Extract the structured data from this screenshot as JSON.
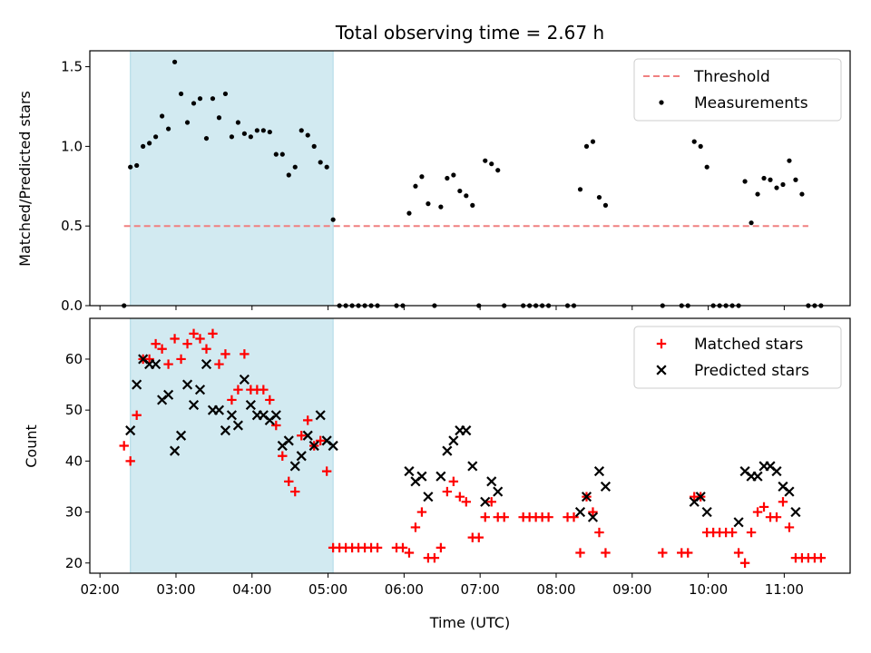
{
  "figure": {
    "title": "Total observing time = 2.67 h",
    "xlabel": "Time (UTC)",
    "x_ticks": [
      "02:00",
      "03:00",
      "04:00",
      "05:00",
      "06:00",
      "07:00",
      "08:00",
      "09:00",
      "10:00",
      "11:00"
    ],
    "shaded_interval": [
      "02:24",
      "05:04"
    ],
    "shade_color": "#add8e6"
  },
  "chart_data": [
    {
      "type": "scatter",
      "panel": "top",
      "ylabel": "Matched/Predicted stars",
      "xlim": [
        "01:52",
        "11:52"
      ],
      "ylim": [
        0,
        1.6
      ],
      "yticks": [
        "0.0",
        "0.5",
        "1.0",
        "1.5"
      ],
      "legend_position": "top-right",
      "threshold": {
        "name": "Threshold",
        "value": 0.5,
        "x_range": [
          "02:19",
          "11:19"
        ],
        "color": "#f08080",
        "style": "dashed"
      },
      "series": [
        {
          "name": "Measurements",
          "color": "#000000",
          "marker": "dot",
          "points": [
            [
              "02:19",
              0.0
            ],
            [
              "02:24",
              0.87
            ],
            [
              "02:29",
              0.88
            ],
            [
              "02:34",
              1.0
            ],
            [
              "02:39",
              1.02
            ],
            [
              "02:44",
              1.06
            ],
            [
              "02:49",
              1.19
            ],
            [
              "02:54",
              1.11
            ],
            [
              "02:59",
              1.53
            ],
            [
              "03:04",
              1.33
            ],
            [
              "03:09",
              1.15
            ],
            [
              "03:14",
              1.27
            ],
            [
              "03:19",
              1.3
            ],
            [
              "03:24",
              1.05
            ],
            [
              "03:29",
              1.3
            ],
            [
              "03:34",
              1.18
            ],
            [
              "03:39",
              1.33
            ],
            [
              "03:44",
              1.06
            ],
            [
              "03:49",
              1.15
            ],
            [
              "03:54",
              1.08
            ],
            [
              "03:59",
              1.06
            ],
            [
              "04:04",
              1.1
            ],
            [
              "04:09",
              1.1
            ],
            [
              "04:14",
              1.09
            ],
            [
              "04:19",
              0.95
            ],
            [
              "04:24",
              0.95
            ],
            [
              "04:29",
              0.82
            ],
            [
              "04:34",
              0.87
            ],
            [
              "04:39",
              1.1
            ],
            [
              "04:44",
              1.07
            ],
            [
              "04:49",
              1.0
            ],
            [
              "04:54",
              0.9
            ],
            [
              "04:59",
              0.87
            ],
            [
              "05:04",
              0.54
            ],
            [
              "05:09",
              0.0
            ],
            [
              "05:14",
              0.0
            ],
            [
              "05:19",
              0.0
            ],
            [
              "05:24",
              0.0
            ],
            [
              "05:29",
              0.0
            ],
            [
              "05:34",
              0.0
            ],
            [
              "05:39",
              0.0
            ],
            [
              "05:54",
              0.0
            ],
            [
              "05:59",
              0.0
            ],
            [
              "06:04",
              0.58
            ],
            [
              "06:09",
              0.75
            ],
            [
              "06:14",
              0.81
            ],
            [
              "06:19",
              0.64
            ],
            [
              "06:24",
              0.0
            ],
            [
              "06:29",
              0.62
            ],
            [
              "06:34",
              0.8
            ],
            [
              "06:39",
              0.82
            ],
            [
              "06:44",
              0.72
            ],
            [
              "06:49",
              0.69
            ],
            [
              "06:54",
              0.63
            ],
            [
              "06:59",
              0.0
            ],
            [
              "07:04",
              0.91
            ],
            [
              "07:09",
              0.89
            ],
            [
              "07:14",
              0.85
            ],
            [
              "07:19",
              0.0
            ],
            [
              "07:34",
              0.0
            ],
            [
              "07:39",
              0.0
            ],
            [
              "07:44",
              0.0
            ],
            [
              "07:49",
              0.0
            ],
            [
              "07:54",
              0.0
            ],
            [
              "08:09",
              0.0
            ],
            [
              "08:14",
              0.0
            ],
            [
              "08:19",
              0.73
            ],
            [
              "08:24",
              1.0
            ],
            [
              "08:29",
              1.03
            ],
            [
              "08:34",
              0.68
            ],
            [
              "08:39",
              0.63
            ],
            [
              "09:24",
              0.0
            ],
            [
              "09:39",
              0.0
            ],
            [
              "09:44",
              0.0
            ],
            [
              "09:49",
              1.03
            ],
            [
              "09:54",
              1.0
            ],
            [
              "09:59",
              0.87
            ],
            [
              "10:04",
              0.0
            ],
            [
              "10:09",
              0.0
            ],
            [
              "10:14",
              0.0
            ],
            [
              "10:19",
              0.0
            ],
            [
              "10:24",
              0.0
            ],
            [
              "10:29",
              0.78
            ],
            [
              "10:34",
              0.52
            ],
            [
              "10:39",
              0.7
            ],
            [
              "10:44",
              0.8
            ],
            [
              "10:49",
              0.79
            ],
            [
              "10:54",
              0.74
            ],
            [
              "10:59",
              0.76
            ],
            [
              "11:04",
              0.91
            ],
            [
              "11:09",
              0.79
            ],
            [
              "11:14",
              0.7
            ],
            [
              "11:19",
              0.0
            ],
            [
              "11:24",
              0.0
            ],
            [
              "11:29",
              0.0
            ]
          ]
        }
      ]
    },
    {
      "type": "scatter",
      "panel": "bottom",
      "ylabel": "Count",
      "xlim": [
        "01:52",
        "11:52"
      ],
      "ylim": [
        18,
        68
      ],
      "yticks": [
        "20",
        "30",
        "40",
        "50",
        "60"
      ],
      "legend_position": "top-right",
      "series": [
        {
          "name": "Matched stars",
          "color": "#ff0000",
          "marker": "plus",
          "points": [
            [
              "02:19",
              43
            ],
            [
              "02:24",
              40
            ],
            [
              "02:29",
              49
            ],
            [
              "02:34",
              60
            ],
            [
              "02:39",
              60
            ],
            [
              "02:44",
              63
            ],
            [
              "02:49",
              62
            ],
            [
              "02:54",
              59
            ],
            [
              "02:59",
              64
            ],
            [
              "03:04",
              60
            ],
            [
              "03:09",
              63
            ],
            [
              "03:14",
              65
            ],
            [
              "03:19",
              64
            ],
            [
              "03:24",
              62
            ],
            [
              "03:29",
              65
            ],
            [
              "03:34",
              59
            ],
            [
              "03:39",
              61
            ],
            [
              "03:44",
              52
            ],
            [
              "03:49",
              54
            ],
            [
              "03:54",
              61
            ],
            [
              "03:59",
              54
            ],
            [
              "04:04",
              54
            ],
            [
              "04:09",
              54
            ],
            [
              "04:14",
              52
            ],
            [
              "04:19",
              47
            ],
            [
              "04:24",
              41
            ],
            [
              "04:29",
              36
            ],
            [
              "04:34",
              34
            ],
            [
              "04:39",
              45
            ],
            [
              "04:44",
              48
            ],
            [
              "04:49",
              43
            ],
            [
              "04:54",
              44
            ],
            [
              "04:59",
              38
            ],
            [
              "05:04",
              23
            ],
            [
              "05:09",
              23
            ],
            [
              "05:14",
              23
            ],
            [
              "05:19",
              23
            ],
            [
              "05:24",
              23
            ],
            [
              "05:29",
              23
            ],
            [
              "05:34",
              23
            ],
            [
              "05:39",
              23
            ],
            [
              "05:54",
              23
            ],
            [
              "05:59",
              23
            ],
            [
              "06:04",
              22
            ],
            [
              "06:09",
              27
            ],
            [
              "06:14",
              30
            ],
            [
              "06:19",
              21
            ],
            [
              "06:24",
              21
            ],
            [
              "06:29",
              23
            ],
            [
              "06:34",
              34
            ],
            [
              "06:39",
              36
            ],
            [
              "06:44",
              33
            ],
            [
              "06:49",
              32
            ],
            [
              "06:54",
              25
            ],
            [
              "06:59",
              25
            ],
            [
              "07:04",
              29
            ],
            [
              "07:09",
              32
            ],
            [
              "07:14",
              29
            ],
            [
              "07:19",
              29
            ],
            [
              "07:34",
              29
            ],
            [
              "07:39",
              29
            ],
            [
              "07:44",
              29
            ],
            [
              "07:49",
              29
            ],
            [
              "07:54",
              29
            ],
            [
              "08:09",
              29
            ],
            [
              "08:14",
              29
            ],
            [
              "08:19",
              22
            ],
            [
              "08:24",
              33
            ],
            [
              "08:29",
              30
            ],
            [
              "08:34",
              26
            ],
            [
              "08:39",
              22
            ],
            [
              "09:24",
              22
            ],
            [
              "09:39",
              22
            ],
            [
              "09:44",
              22
            ],
            [
              "09:49",
              33
            ],
            [
              "09:54",
              33
            ],
            [
              "09:59",
              26
            ],
            [
              "10:04",
              26
            ],
            [
              "10:09",
              26
            ],
            [
              "10:14",
              26
            ],
            [
              "10:19",
              26
            ],
            [
              "10:24",
              22
            ],
            [
              "10:29",
              20
            ],
            [
              "10:34",
              26
            ],
            [
              "10:39",
              30
            ],
            [
              "10:44",
              31
            ],
            [
              "10:49",
              29
            ],
            [
              "10:54",
              29
            ],
            [
              "10:59",
              32
            ],
            [
              "11:04",
              27
            ],
            [
              "11:09",
              21
            ],
            [
              "11:14",
              21
            ],
            [
              "11:19",
              21
            ],
            [
              "11:24",
              21
            ],
            [
              "11:29",
              21
            ]
          ]
        },
        {
          "name": "Predicted stars",
          "color": "#000000",
          "marker": "x",
          "points": [
            [
              "02:24",
              46
            ],
            [
              "02:29",
              55
            ],
            [
              "02:34",
              60
            ],
            [
              "02:39",
              59
            ],
            [
              "02:44",
              59
            ],
            [
              "02:49",
              52
            ],
            [
              "02:54",
              53
            ],
            [
              "02:59",
              42
            ],
            [
              "03:04",
              45
            ],
            [
              "03:09",
              55
            ],
            [
              "03:14",
              51
            ],
            [
              "03:19",
              54
            ],
            [
              "03:24",
              59
            ],
            [
              "03:29",
              50
            ],
            [
              "03:34",
              50
            ],
            [
              "03:39",
              46
            ],
            [
              "03:44",
              49
            ],
            [
              "03:49",
              47
            ],
            [
              "03:54",
              56
            ],
            [
              "03:59",
              51
            ],
            [
              "04:04",
              49
            ],
            [
              "04:09",
              49
            ],
            [
              "04:14",
              48
            ],
            [
              "04:19",
              49
            ],
            [
              "04:24",
              43
            ],
            [
              "04:29",
              44
            ],
            [
              "04:34",
              39
            ],
            [
              "04:39",
              41
            ],
            [
              "04:44",
              45
            ],
            [
              "04:49",
              43
            ],
            [
              "04:54",
              49
            ],
            [
              "04:59",
              44
            ],
            [
              "05:04",
              43
            ],
            [
              "06:04",
              38
            ],
            [
              "06:09",
              36
            ],
            [
              "06:14",
              37
            ],
            [
              "06:19",
              33
            ],
            [
              "06:29",
              37
            ],
            [
              "06:34",
              42
            ],
            [
              "06:39",
              44
            ],
            [
              "06:44",
              46
            ],
            [
              "06:49",
              46
            ],
            [
              "06:54",
              39
            ],
            [
              "07:04",
              32
            ],
            [
              "07:09",
              36
            ],
            [
              "07:14",
              34
            ],
            [
              "08:19",
              30
            ],
            [
              "08:24",
              33
            ],
            [
              "08:29",
              29
            ],
            [
              "08:34",
              38
            ],
            [
              "08:39",
              35
            ],
            [
              "09:49",
              32
            ],
            [
              "09:54",
              33
            ],
            [
              "09:59",
              30
            ],
            [
              "10:24",
              28
            ],
            [
              "10:29",
              38
            ],
            [
              "10:34",
              37
            ],
            [
              "10:39",
              37
            ],
            [
              "10:44",
              39
            ],
            [
              "10:49",
              39
            ],
            [
              "10:54",
              38
            ],
            [
              "10:59",
              35
            ],
            [
              "11:04",
              34
            ],
            [
              "11:09",
              30
            ]
          ]
        }
      ]
    }
  ]
}
